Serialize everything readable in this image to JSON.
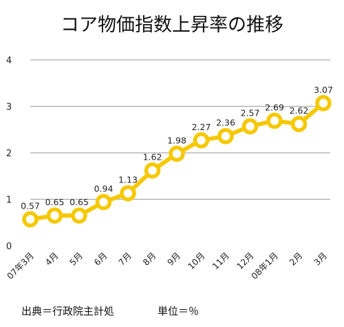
{
  "chart_data": {
    "type": "line",
    "title": "コア物価指数上昇率の推移",
    "categories": [
      "07年3月",
      "4月",
      "5月",
      "6月",
      "7月",
      "8月",
      "9月",
      "10月",
      "11月",
      "12月",
      "08年1月",
      "2月",
      "3月"
    ],
    "values": [
      0.57,
      0.65,
      0.65,
      0.94,
      1.13,
      1.62,
      1.98,
      2.27,
      2.36,
      2.57,
      2.69,
      2.62,
      3.07
    ],
    "data_labels": [
      "0.57",
      "0.65",
      "0.65",
      "0.94",
      "1.13",
      "1.62",
      "1.98",
      "2.27",
      "2.36",
      "2.57",
      "2.69",
      "2.62",
      "3.07"
    ],
    "y_ticks": [
      "0",
      "1",
      "2",
      "3",
      "4"
    ],
    "ylim": [
      0,
      4
    ],
    "grid": true,
    "legend": "none",
    "line_color": "#f5c800",
    "grid_color": "#aaaaaa"
  },
  "footer": {
    "source": "出典＝行政院主計処",
    "unit": "単位＝％"
  }
}
